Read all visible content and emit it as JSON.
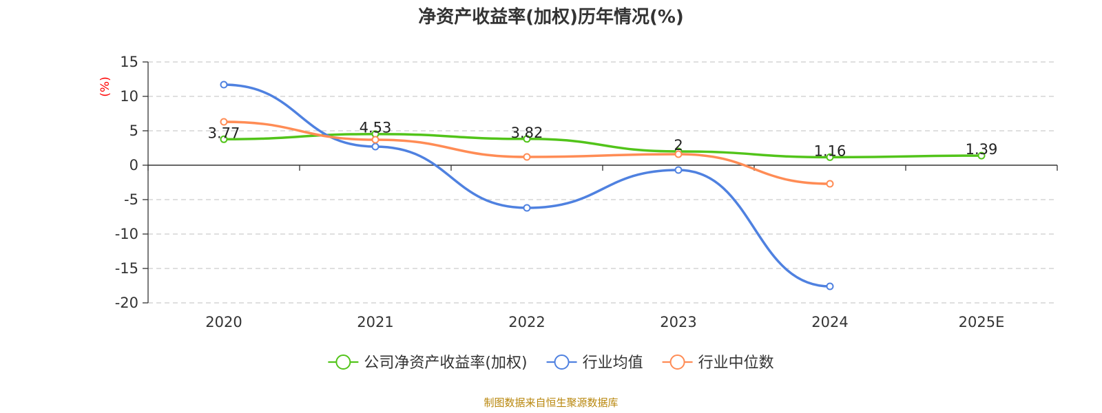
{
  "chart_data": {
    "type": "line",
    "title": "净资产收益率(加权)历年情况(%)",
    "ylabel": "(%)",
    "xlabel": "",
    "categories": [
      "2020",
      "2021",
      "2022",
      "2023",
      "2024",
      "2025E"
    ],
    "ylim": [
      -20,
      15
    ],
    "yticks": [
      15,
      10,
      5,
      0,
      -5,
      -10,
      -15,
      -20
    ],
    "grid": true,
    "legend_position": "bottom",
    "series": [
      {
        "name": "公司净资产收益率(加权)",
        "color": "#52c41a",
        "values": [
          3.77,
          4.53,
          3.82,
          2,
          1.16,
          1.39
        ],
        "labels": [
          "3.77",
          "4.53",
          "3.82",
          "2",
          "1.16",
          "1.39"
        ]
      },
      {
        "name": "行业均值",
        "color": "#4f81e0",
        "values": [
          11.7,
          2.7,
          -6.2,
          -0.7,
          -17.6,
          null
        ]
      },
      {
        "name": "行业中位数",
        "color": "#ff8c55",
        "values": [
          6.3,
          3.7,
          1.2,
          1.6,
          -2.7,
          null
        ]
      }
    ]
  },
  "source": "制图数据来自恒生聚源数据库"
}
